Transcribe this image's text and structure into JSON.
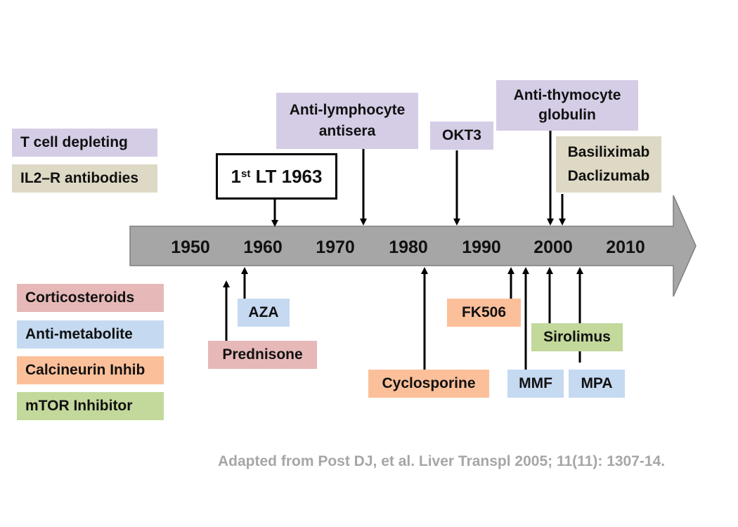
{
  "legend": {
    "top": [
      {
        "label": "T cell depleting",
        "color": "#d5cde6"
      },
      {
        "label": "IL2–R antibodies",
        "color": "#ddd9c4"
      }
    ],
    "bottom": [
      {
        "label": "Corticosteroids",
        "color": "#e6b8b8"
      },
      {
        "label": "Anti-metabolite",
        "color": "#c5d9f1"
      },
      {
        "label": "Calcineurin Inhib",
        "color": "#fbc09a"
      },
      {
        "label": "mTOR Inhibitor",
        "color": "#c3d89b"
      }
    ]
  },
  "timeline": {
    "years": [
      "1950",
      "1960",
      "1970",
      "1980",
      "1990",
      "2000",
      "2010"
    ],
    "arrow_color": "#a6a6a6"
  },
  "milestone": {
    "prefix": "1",
    "superscript": "st",
    "suffix": " LT 1963"
  },
  "above_events": {
    "anti_lymphocyte": {
      "line1": "Anti-lymphocyte",
      "line2": "antisera"
    },
    "okt3": "OKT3",
    "anti_thymocyte": {
      "line1": "Anti-thymocyte",
      "line2": "globulin"
    },
    "basiliximab": "Basiliximab",
    "daclizumab": "Daclizumab"
  },
  "below_events": {
    "aza": "AZA",
    "prednisone": "Prednisone",
    "cyclosporine": "Cyclosporine",
    "fk506": "FK506",
    "mmf": "MMF",
    "sirolimus": "Sirolimus",
    "mpa": "MPA"
  },
  "citation": "Adapted from Post DJ, et al. Liver Transpl 2005; 11(11): 1307-14."
}
